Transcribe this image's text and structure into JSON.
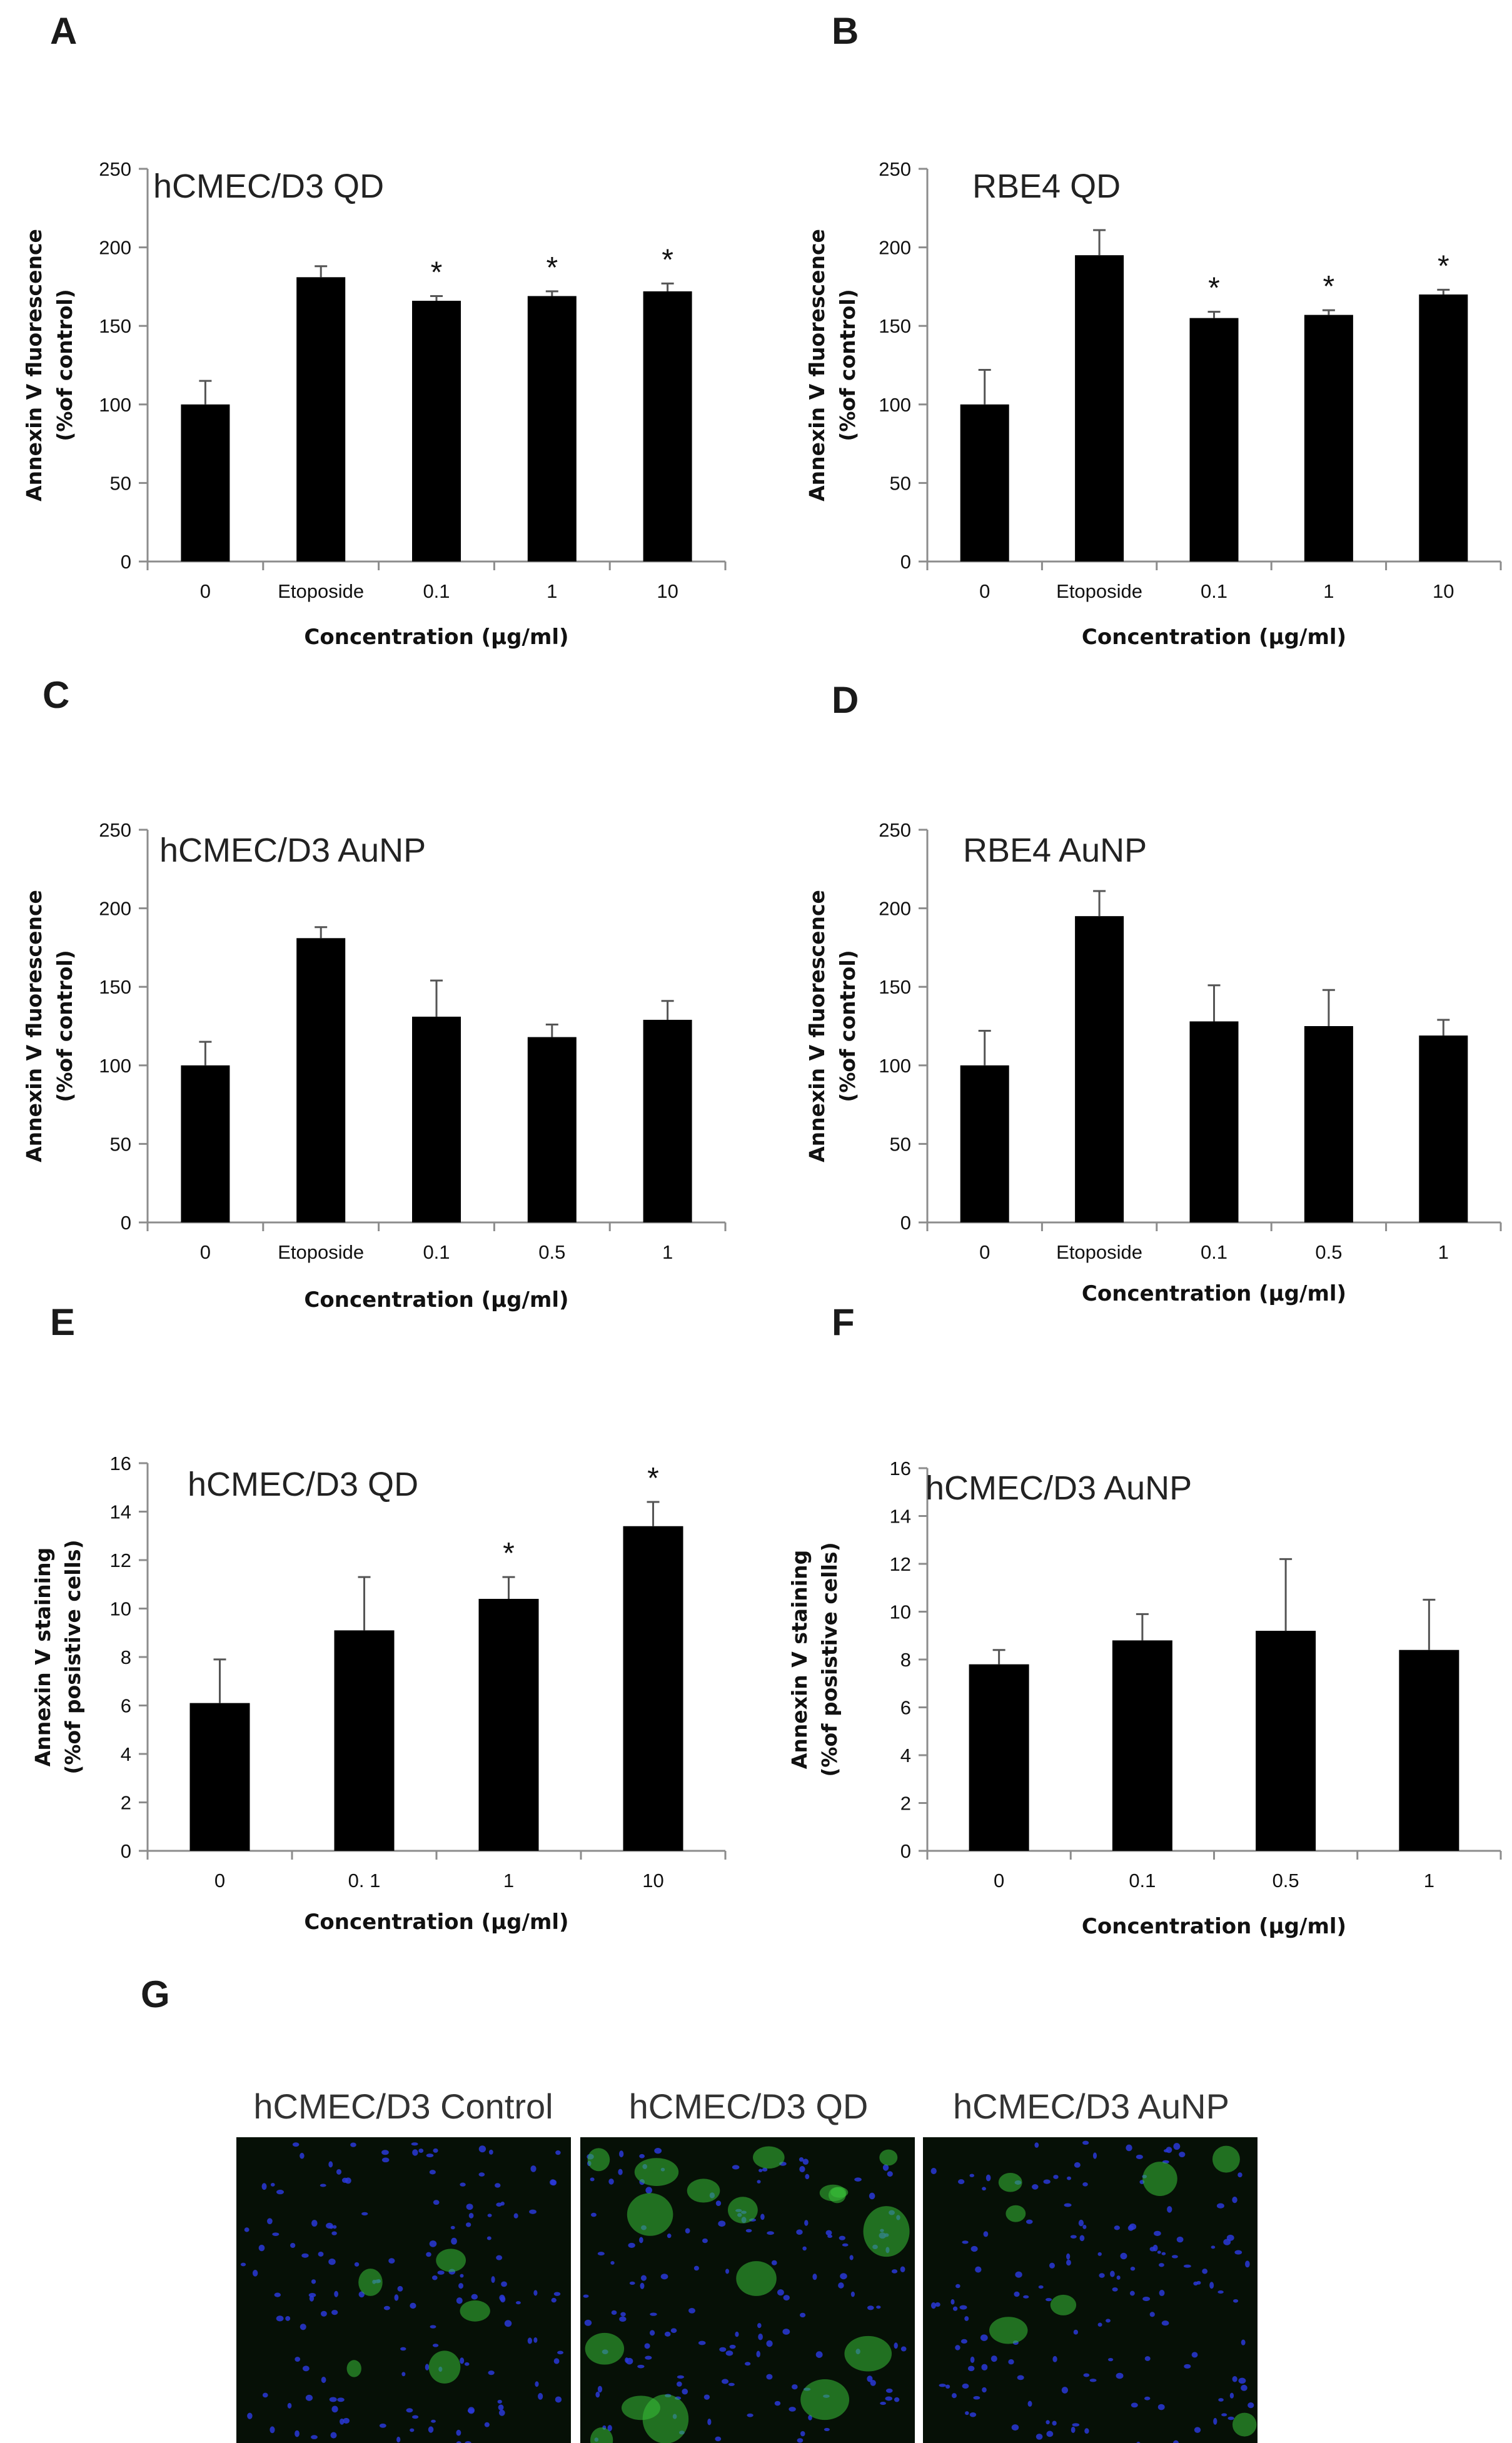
{
  "panels": [
    "A",
    "B",
    "C",
    "D",
    "E",
    "F",
    "G"
  ],
  "chart_data": [
    {
      "panel": "A",
      "type": "bar",
      "title": "hCMEC/D3 QD",
      "categories": [
        "0",
        "Etoposide",
        "0.1",
        "1",
        "10"
      ],
      "values": [
        100,
        181,
        166,
        169,
        172
      ],
      "errors": [
        15,
        7,
        3,
        3,
        5
      ],
      "significance": [
        "",
        "",
        "*",
        "*",
        "*"
      ],
      "xlabel": "Concentration (μg/ml)",
      "ylabel": [
        "Annexin V fluorescence",
        "(%of control)"
      ],
      "ylim": [
        0,
        250
      ],
      "yticks": [
        0,
        50,
        100,
        150,
        200,
        250
      ]
    },
    {
      "panel": "B",
      "type": "bar",
      "title": "RBE4 QD",
      "categories": [
        "0",
        "Etoposide",
        "0.1",
        "1",
        "10"
      ],
      "values": [
        100,
        195,
        155,
        157,
        170
      ],
      "errors": [
        22,
        16,
        4,
        3,
        3
      ],
      "significance": [
        "",
        "",
        "*",
        "*",
        "*"
      ],
      "xlabel": "Concentration (μg/ml)",
      "ylabel": [
        "Annexin V fluorescence",
        "(%of control)"
      ],
      "ylim": [
        0,
        250
      ],
      "yticks": [
        0,
        50,
        100,
        150,
        200,
        250
      ]
    },
    {
      "panel": "C",
      "type": "bar",
      "title": "hCMEC/D3 AuNP",
      "categories": [
        "0",
        "Etoposide",
        "0.1",
        "0.5",
        "1"
      ],
      "values": [
        100,
        181,
        131,
        118,
        129
      ],
      "errors": [
        15,
        7,
        23,
        8,
        12
      ],
      "significance": [
        "",
        "",
        "",
        "",
        ""
      ],
      "xlabel": "Concentration (μg/ml)",
      "ylabel": [
        "Annexin V fluorescence",
        "(%of control)"
      ],
      "ylim": [
        0,
        250
      ],
      "yticks": [
        0,
        50,
        100,
        150,
        200,
        250
      ]
    },
    {
      "panel": "D",
      "type": "bar",
      "title": "RBE4 AuNP",
      "categories": [
        "0",
        "Etoposide",
        "0.1",
        "0.5",
        "1"
      ],
      "values": [
        100,
        195,
        128,
        125,
        119
      ],
      "errors": [
        22,
        16,
        23,
        23,
        10
      ],
      "significance": [
        "",
        "",
        "",
        "",
        ""
      ],
      "xlabel": "Concentration (μg/ml)",
      "ylabel": [
        "Annexin V fluorescence",
        "(%of control)"
      ],
      "ylim": [
        0,
        250
      ],
      "yticks": [
        0,
        50,
        100,
        150,
        200,
        250
      ]
    },
    {
      "panel": "E",
      "type": "bar",
      "title": "hCMEC/D3 QD",
      "categories": [
        "0",
        "0. 1",
        "1",
        "10"
      ],
      "values": [
        6.1,
        9.1,
        10.4,
        13.4
      ],
      "errors": [
        1.8,
        2.2,
        0.9,
        1.0
      ],
      "significance": [
        "",
        "",
        "*",
        "*"
      ],
      "xlabel": "Concentration (μg/ml)",
      "ylabel": [
        "Annexin V staining",
        "(%of posistive cells)"
      ],
      "ylim": [
        0,
        16
      ],
      "yticks": [
        0,
        2,
        4,
        6,
        8,
        10,
        12,
        14,
        16
      ]
    },
    {
      "panel": "F",
      "type": "bar",
      "title": "hCMEC/D3 AuNP",
      "categories": [
        "0",
        "0.1",
        "0.5",
        "1"
      ],
      "values": [
        7.8,
        8.8,
        9.2,
        8.4
      ],
      "errors": [
        0.6,
        1.1,
        3.0,
        2.1
      ],
      "significance": [
        "",
        "",
        "",
        ""
      ],
      "xlabel": "Concentration (μg/ml)",
      "ylabel": [
        "Annexin V staining",
        "(%of posistive cells)"
      ],
      "ylim": [
        0,
        16
      ],
      "yticks": [
        0,
        2,
        4,
        6,
        8,
        10,
        12,
        14,
        16
      ]
    }
  ],
  "micrographs": {
    "panel": "G",
    "titles": [
      "hCMEC/D3 Control",
      "hCMEC/D3 QD",
      "hCMEC/D3 AuNP"
    ]
  },
  "colors": {
    "bar": "#000000",
    "nucleus": "#2a38d8",
    "annexin": "#38c038",
    "micro_bg": "#061006"
  }
}
